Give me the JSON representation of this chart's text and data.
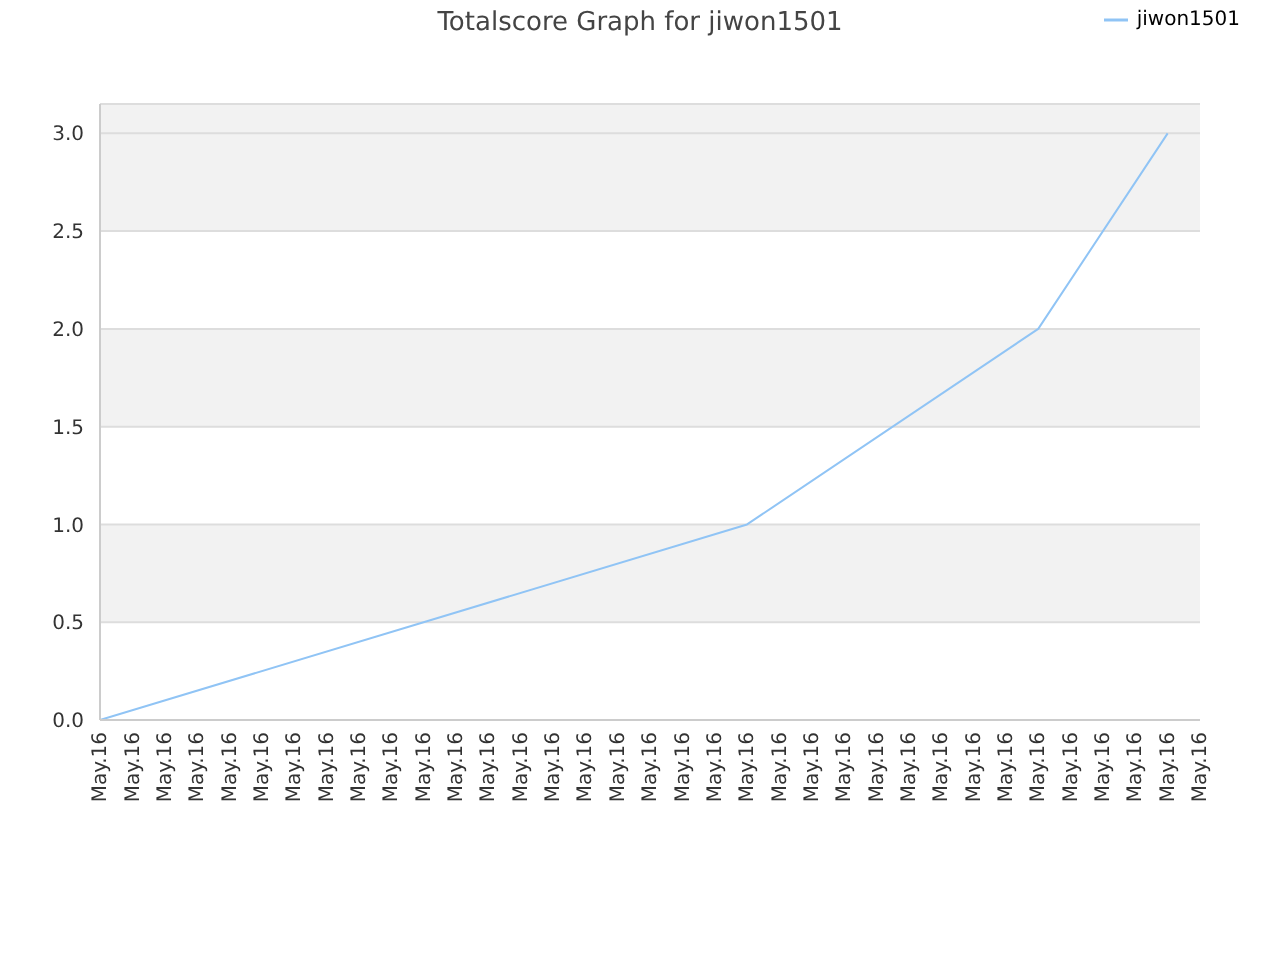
{
  "chart_data": {
    "type": "line",
    "title": "Totalscore Graph for jiwon1501",
    "categories": [
      "May.16",
      "May.16",
      "May.16",
      "May.16",
      "May.16",
      "May.16",
      "May.16",
      "May.16",
      "May.16",
      "May.16",
      "May.16",
      "May.16",
      "May.16",
      "May.16",
      "May.16",
      "May.16",
      "May.16",
      "May.16",
      "May.16",
      "May.16",
      "May.16",
      "May.16",
      "May.16",
      "May.16",
      "May.16",
      "May.16",
      "May.16",
      "May.16",
      "May.16",
      "May.16",
      "May.16",
      "May.16",
      "May.16",
      "May.16",
      "May.16"
    ],
    "series": [
      {
        "name": "jiwon1501",
        "color": "#90c4f5",
        "values": [
          0,
          null,
          null,
          null,
          null,
          null,
          null,
          null,
          null,
          null,
          null,
          null,
          null,
          null,
          null,
          null,
          null,
          null,
          null,
          null,
          1,
          null,
          null,
          null,
          null,
          null,
          null,
          null,
          null,
          2,
          null,
          null,
          null,
          3,
          null
        ]
      }
    ],
    "ylim": [
      0,
      3.15
    ],
    "yticks": [
      {
        "value": 0,
        "label": "0.0"
      },
      {
        "value": 0.5,
        "label": "0.5"
      },
      {
        "value": 1,
        "label": "1.0"
      },
      {
        "value": 1.5,
        "label": "1.5"
      },
      {
        "value": 2,
        "label": "2.0"
      },
      {
        "value": 2.5,
        "label": "2.5"
      },
      {
        "value": 3,
        "label": "3.0"
      }
    ],
    "grid": "y",
    "legend": "top right",
    "marker": "none",
    "line_style": "solid"
  }
}
